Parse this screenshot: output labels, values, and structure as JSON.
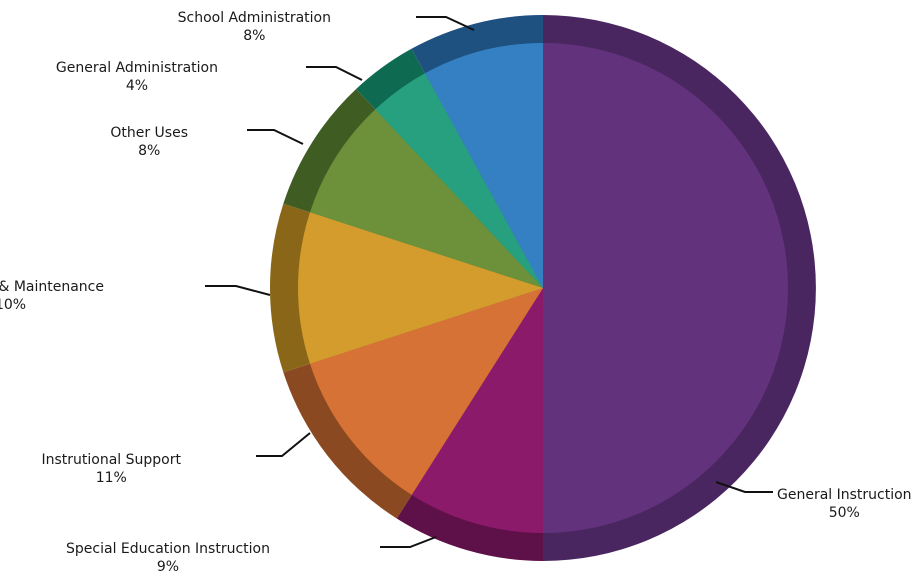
{
  "chart_data": {
    "type": "pie",
    "title": "",
    "slices": [
      {
        "label": "General Instruction",
        "value": 50,
        "display": "50%",
        "color": "#62337c",
        "dark": "#4a2660"
      },
      {
        "label": "Special Education Instruction",
        "value": 9,
        "display": "9%",
        "color": "#8c1a6a",
        "dark": "#5e1148"
      },
      {
        "label": "Instrutional Support",
        "value": 11,
        "display": "11%",
        "color": "#d77236",
        "dark": "#8a4920"
      },
      {
        "label": "Operations & Maintenance",
        "value": 10,
        "display": "10%",
        "color": "#d39c2d",
        "dark": "#8a6618"
      },
      {
        "label": "Other Uses",
        "value": 8,
        "display": "8%",
        "color": "#6c913a",
        "dark": "#3f5d22"
      },
      {
        "label": "General Administration",
        "value": 4,
        "display": "4%",
        "color": "#26a07e",
        "dark": "#0f6a52"
      },
      {
        "label": "School Administration",
        "value": 8,
        "display": "8%",
        "color": "#3580c2",
        "dark": "#1e5080"
      }
    ],
    "legend": "none",
    "label_placement": "outside with leader lines"
  }
}
